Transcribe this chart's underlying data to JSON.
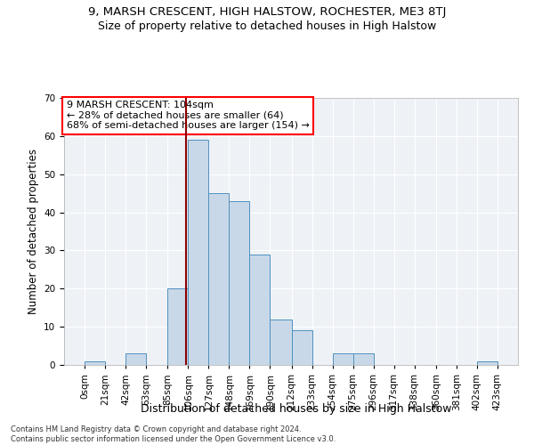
{
  "title1": "9, MARSH CRESCENT, HIGH HALSTOW, ROCHESTER, ME3 8TJ",
  "title2": "Size of property relative to detached houses in High Halstow",
  "xlabel": "Distribution of detached houses by size in High Halstow",
  "ylabel": "Number of detached properties",
  "bin_edges": [
    0,
    21,
    42,
    63,
    85,
    106,
    127,
    148,
    169,
    190,
    212,
    233,
    254,
    275,
    296,
    317,
    338,
    360,
    381,
    402,
    423
  ],
  "bar_heights": [
    1,
    0,
    3,
    0,
    20,
    59,
    45,
    43,
    29,
    12,
    9,
    0,
    3,
    3,
    0,
    0,
    0,
    0,
    0,
    1
  ],
  "bar_color": "#c8d8e8",
  "bar_edge_color": "#5090c0",
  "property_size": 104,
  "vline_color": "#8b0000",
  "annotation_text": "9 MARSH CRESCENT: 104sqm\n← 28% of detached houses are smaller (64)\n68% of semi-detached houses are larger (154) →",
  "annotation_box_color": "white",
  "annotation_box_edge": "red",
  "ylim": [
    0,
    70
  ],
  "yticks": [
    0,
    10,
    20,
    30,
    40,
    50,
    60,
    70
  ],
  "bg_color": "#eef2f7",
  "footnote": "Contains HM Land Registry data © Crown copyright and database right 2024.\nContains public sector information licensed under the Open Government Licence v3.0.",
  "title1_fontsize": 9.5,
  "title2_fontsize": 9,
  "xlabel_fontsize": 9,
  "ylabel_fontsize": 8.5,
  "tick_fontsize": 7.5,
  "annot_fontsize": 8
}
